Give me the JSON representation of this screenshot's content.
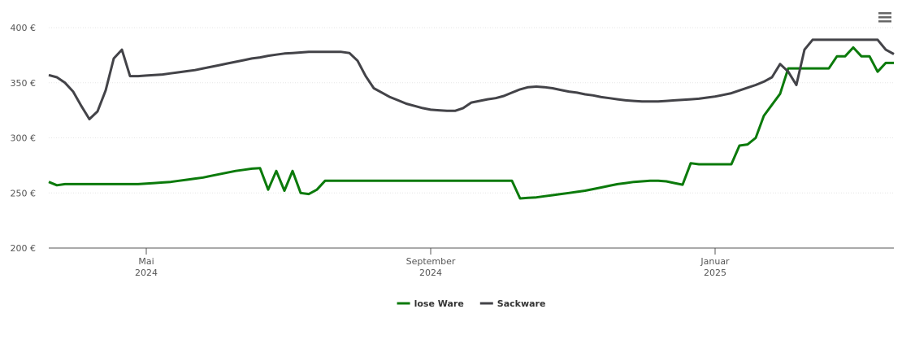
{
  "chart_data": {
    "type": "line",
    "categories": [
      null,
      null,
      null,
      null,
      null,
      null,
      null,
      null,
      null,
      null,
      null,
      null,
      "Mai 2024",
      null,
      null,
      null,
      null,
      null,
      null,
      null,
      null,
      null,
      null,
      null,
      null,
      null,
      null,
      null,
      null,
      null,
      null,
      null,
      null,
      null,
      null,
      null,
      null,
      null,
      null,
      null,
      null,
      null,
      null,
      null,
      null,
      null,
      null,
      "September 2024",
      null,
      null,
      null,
      null,
      null,
      null,
      null,
      null,
      null,
      null,
      null,
      null,
      null,
      null,
      null,
      null,
      null,
      null,
      null,
      null,
      null,
      null,
      null,
      null,
      null,
      null,
      null,
      null,
      null,
      null,
      null,
      null,
      null,
      null,
      "Januar 2025",
      null,
      null,
      null,
      null,
      null,
      null,
      null,
      null,
      null,
      null,
      null,
      null,
      null,
      null,
      null,
      null,
      null,
      null,
      null,
      null,
      null,
      null
    ],
    "series": [
      {
        "name": "lose Ware",
        "color": "#0b7a0b",
        "values": [
          260,
          257,
          258,
          258,
          258,
          258,
          258,
          258,
          258,
          258,
          258,
          258,
          258.5,
          259,
          259.5,
          260,
          261,
          262,
          263,
          264,
          265.5,
          267,
          268.5,
          270,
          271,
          272,
          272.5,
          253,
          270,
          252,
          270,
          250,
          249,
          253,
          261,
          261,
          261,
          261,
          261,
          261,
          261,
          261,
          261,
          261,
          261,
          261,
          261,
          261,
          261,
          261,
          261,
          261,
          261,
          261,
          261,
          261,
          261,
          261,
          245,
          245.5,
          246,
          247,
          248,
          249,
          250,
          251,
          252,
          253.5,
          255,
          256.5,
          258,
          259,
          260,
          260.5,
          261,
          261,
          260.5,
          259,
          257.5,
          277,
          276,
          276,
          276,
          276,
          276,
          293,
          294,
          300,
          320,
          330,
          340,
          363,
          363,
          363,
          363,
          363,
          363,
          374,
          374,
          382,
          374,
          374,
          360,
          368,
          368
        ]
      },
      {
        "name": "Sackware",
        "color": "#434348",
        "values": [
          357,
          355,
          350,
          342,
          329,
          317,
          324,
          343,
          372,
          380,
          356,
          356,
          356.5,
          357,
          357.5,
          358.5,
          359.5,
          360.5,
          361.5,
          363,
          364.5,
          366,
          367.5,
          369,
          370.5,
          372,
          373,
          374.5,
          375.5,
          376.5,
          377,
          377.5,
          378,
          378,
          378,
          378,
          378,
          377,
          370,
          356,
          345,
          341,
          337,
          334,
          331,
          329,
          327,
          325.5,
          325,
          324.5,
          324.5,
          327,
          332,
          333.5,
          335,
          336,
          338,
          341,
          344,
          346,
          346.5,
          346,
          345,
          343.5,
          342,
          341,
          339.5,
          338.5,
          337,
          336,
          335,
          334,
          333.5,
          333,
          333,
          333,
          333.5,
          334,
          334.5,
          335,
          335.5,
          336.5,
          337.5,
          339,
          340.5,
          343,
          345.5,
          348,
          351,
          355,
          367,
          360,
          348,
          380,
          389,
          389,
          389,
          389,
          389,
          389,
          389,
          389,
          389,
          380,
          376
        ]
      }
    ],
    "ylim": [
      200,
      400
    ],
    "yticks": [
      {
        "value": 200,
        "label": "200 €"
      },
      {
        "value": 250,
        "label": "250 €"
      },
      {
        "value": 300,
        "label": "300 €"
      },
      {
        "value": 350,
        "label": "350 €"
      },
      {
        "value": 400,
        "label": "400 €"
      }
    ],
    "grid": true,
    "legend": "bottom"
  }
}
